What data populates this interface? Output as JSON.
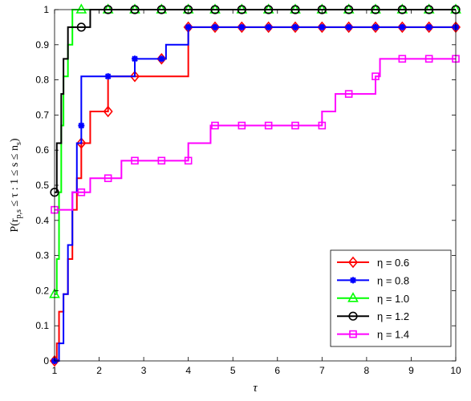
{
  "chart_data": {
    "type": "line",
    "chart_style": "step",
    "title": "",
    "xlabel": "τ",
    "ylabel": "P(r_{p,s} ≤ τ : 1 ≤ s ≤ n_s)",
    "ylabel_parts": [
      "P(r",
      "p,s",
      " ≤ τ : 1 ≤ s ≤ n",
      "s",
      ")"
    ],
    "xlim": [
      1,
      10
    ],
    "ylim": [
      0,
      1
    ],
    "xticks": [
      "1",
      "2",
      "3",
      "4",
      "5",
      "6",
      "7",
      "8",
      "9",
      "10"
    ],
    "yticks": [
      "0",
      "0.1",
      "0.2",
      "0.3",
      "0.4",
      "0.5",
      "0.6",
      "0.7",
      "0.8",
      "0.9",
      "1"
    ],
    "grid": false,
    "legend_position": "bottom-right",
    "series": [
      {
        "name": "η = 0.6",
        "color": "#ff0000",
        "marker": "diamond",
        "steps": [
          [
            1,
            0.0
          ],
          [
            1.05,
            0.05
          ],
          [
            1.1,
            0.14
          ],
          [
            1.2,
            0.19
          ],
          [
            1.3,
            0.29
          ],
          [
            1.4,
            0.43
          ],
          [
            1.5,
            0.52
          ],
          [
            1.6,
            0.62
          ],
          [
            1.8,
            0.71
          ],
          [
            2.2,
            0.81
          ],
          [
            4.0,
            0.95
          ],
          [
            10,
            0.95
          ]
        ],
        "markers": [
          [
            1,
            0.0
          ],
          [
            1.6,
            0.62
          ],
          [
            2.2,
            0.71
          ],
          [
            2.8,
            0.81
          ],
          [
            3.4,
            0.86
          ],
          [
            4.0,
            0.95
          ],
          [
            4.6,
            0.95
          ],
          [
            5.2,
            0.95
          ],
          [
            5.8,
            0.95
          ],
          [
            6.4,
            0.95
          ],
          [
            7.0,
            0.95
          ],
          [
            7.6,
            0.95
          ],
          [
            8.2,
            0.95
          ],
          [
            8.8,
            0.95
          ],
          [
            9.4,
            0.95
          ],
          [
            10.0,
            0.95
          ]
        ]
      },
      {
        "name": "η = 0.8",
        "color": "#0000ff",
        "marker": "asterisk",
        "steps": [
          [
            1,
            0.0
          ],
          [
            1.1,
            0.05
          ],
          [
            1.2,
            0.19
          ],
          [
            1.3,
            0.33
          ],
          [
            1.4,
            0.48
          ],
          [
            1.5,
            0.62
          ],
          [
            1.6,
            0.81
          ],
          [
            2.8,
            0.86
          ],
          [
            3.5,
            0.9
          ],
          [
            4.0,
            0.95
          ],
          [
            10,
            0.95
          ]
        ],
        "markers": [
          [
            1,
            0.0
          ],
          [
            1.6,
            0.67
          ],
          [
            2.2,
            0.81
          ],
          [
            2.8,
            0.86
          ],
          [
            3.4,
            0.86
          ],
          [
            4.0,
            0.95
          ],
          [
            4.6,
            0.95
          ],
          [
            5.2,
            0.95
          ],
          [
            5.8,
            0.95
          ],
          [
            6.4,
            0.95
          ],
          [
            7.0,
            0.95
          ],
          [
            7.6,
            0.95
          ],
          [
            8.2,
            0.95
          ],
          [
            8.8,
            0.95
          ],
          [
            9.4,
            0.95
          ],
          [
            10.0,
            0.95
          ]
        ]
      },
      {
        "name": "η = 1.0",
        "color": "#00ff00",
        "marker": "triangle",
        "steps": [
          [
            1,
            0.19
          ],
          [
            1.05,
            0.29
          ],
          [
            1.1,
            0.48
          ],
          [
            1.15,
            0.67
          ],
          [
            1.2,
            0.81
          ],
          [
            1.3,
            0.9
          ],
          [
            1.4,
            1.0
          ],
          [
            10,
            1.0
          ]
        ],
        "markers": [
          [
            1,
            0.19
          ],
          [
            1.6,
            1.0
          ],
          [
            2.2,
            1.0
          ],
          [
            2.8,
            1.0
          ],
          [
            3.4,
            1.0
          ],
          [
            4.0,
            1.0
          ],
          [
            4.6,
            1.0
          ],
          [
            5.2,
            1.0
          ],
          [
            5.8,
            1.0
          ],
          [
            6.4,
            1.0
          ],
          [
            7.0,
            1.0
          ],
          [
            7.6,
            1.0
          ],
          [
            8.2,
            1.0
          ],
          [
            8.8,
            1.0
          ],
          [
            9.4,
            1.0
          ],
          [
            10.0,
            1.0
          ]
        ]
      },
      {
        "name": "η = 1.2",
        "color": "#000000",
        "marker": "circle",
        "steps": [
          [
            1,
            0.48
          ],
          [
            1.05,
            0.62
          ],
          [
            1.15,
            0.76
          ],
          [
            1.2,
            0.86
          ],
          [
            1.3,
            0.95
          ],
          [
            1.8,
            1.0
          ],
          [
            10,
            1.0
          ]
        ],
        "markers": [
          [
            1,
            0.48
          ],
          [
            1.6,
            0.95
          ],
          [
            2.2,
            1.0
          ],
          [
            2.8,
            1.0
          ],
          [
            3.4,
            1.0
          ],
          [
            4.0,
            1.0
          ],
          [
            4.6,
            1.0
          ],
          [
            5.2,
            1.0
          ],
          [
            5.8,
            1.0
          ],
          [
            6.4,
            1.0
          ],
          [
            7.0,
            1.0
          ],
          [
            7.6,
            1.0
          ],
          [
            8.2,
            1.0
          ],
          [
            8.8,
            1.0
          ],
          [
            9.4,
            1.0
          ],
          [
            10.0,
            1.0
          ]
        ]
      },
      {
        "name": "η = 1.4",
        "color": "#ff00ff",
        "marker": "square",
        "steps": [
          [
            1,
            0.43
          ],
          [
            1.4,
            0.48
          ],
          [
            1.8,
            0.52
          ],
          [
            2.5,
            0.57
          ],
          [
            4.0,
            0.62
          ],
          [
            4.5,
            0.67
          ],
          [
            7.0,
            0.71
          ],
          [
            7.3,
            0.76
          ],
          [
            8.2,
            0.81
          ],
          [
            8.3,
            0.86
          ],
          [
            10,
            0.86
          ]
        ],
        "markers": [
          [
            1,
            0.43
          ],
          [
            1.6,
            0.48
          ],
          [
            2.2,
            0.52
          ],
          [
            2.8,
            0.57
          ],
          [
            3.4,
            0.57
          ],
          [
            4.0,
            0.57
          ],
          [
            4.6,
            0.67
          ],
          [
            5.2,
            0.67
          ],
          [
            5.8,
            0.67
          ],
          [
            6.4,
            0.67
          ],
          [
            7.0,
            0.67
          ],
          [
            7.6,
            0.76
          ],
          [
            8.2,
            0.81
          ],
          [
            8.8,
            0.86
          ],
          [
            9.4,
            0.86
          ],
          [
            10.0,
            0.86
          ]
        ]
      }
    ]
  }
}
